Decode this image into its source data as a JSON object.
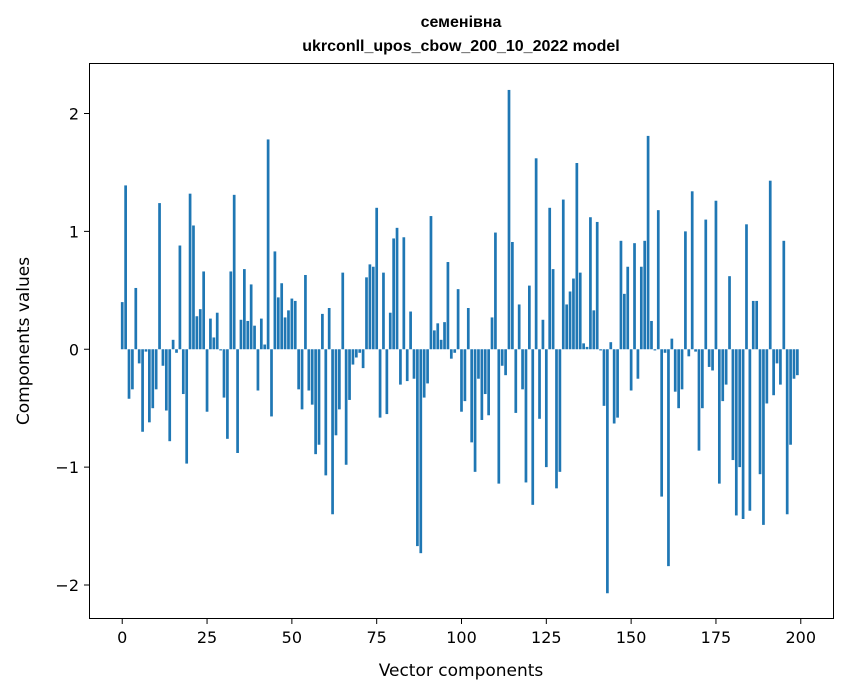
{
  "chart_data": {
    "type": "bar",
    "title": "семенівна",
    "subtitle": "ukrconll_upos_cbow_200_10_2022 model",
    "xlabel": "Vector components",
    "ylabel": "Components values",
    "xlim": [
      -9.5,
      209.5
    ],
    "ylim": [
      -2.28,
      2.42
    ],
    "xticks": [
      0,
      25,
      50,
      75,
      100,
      125,
      150,
      175,
      200
    ],
    "xtick_labels": [
      "0",
      "25",
      "50",
      "75",
      "100",
      "125",
      "150",
      "175",
      "200"
    ],
    "yticks": [
      -2,
      -1,
      0,
      1,
      2
    ],
    "ytick_labels": [
      "−2",
      "−1",
      "0",
      "1",
      "2"
    ],
    "grid": false,
    "bar_color": "#1f77b4",
    "x": [
      0,
      1,
      2,
      3,
      4,
      5,
      6,
      7,
      8,
      9,
      10,
      11,
      12,
      13,
      14,
      15,
      16,
      17,
      18,
      19,
      20,
      21,
      22,
      23,
      24,
      25,
      26,
      27,
      28,
      29,
      30,
      31,
      32,
      33,
      34,
      35,
      36,
      37,
      38,
      39,
      40,
      41,
      42,
      43,
      44,
      45,
      46,
      47,
      48,
      49,
      50,
      51,
      52,
      53,
      54,
      55,
      56,
      57,
      58,
      59,
      60,
      61,
      62,
      63,
      64,
      65,
      66,
      67,
      68,
      69,
      70,
      71,
      72,
      73,
      74,
      75,
      76,
      77,
      78,
      79,
      80,
      81,
      82,
      83,
      84,
      85,
      86,
      87,
      88,
      89,
      90,
      91,
      92,
      93,
      94,
      95,
      96,
      97,
      98,
      99,
      100,
      101,
      102,
      103,
      104,
      105,
      106,
      107,
      108,
      109,
      110,
      111,
      112,
      113,
      114,
      115,
      116,
      117,
      118,
      119,
      120,
      121,
      122,
      123,
      124,
      125,
      126,
      127,
      128,
      129,
      130,
      131,
      132,
      133,
      134,
      135,
      136,
      137,
      138,
      139,
      140,
      141,
      142,
      143,
      144,
      145,
      146,
      147,
      148,
      149,
      150,
      151,
      152,
      153,
      154,
      155,
      156,
      157,
      158,
      159,
      160,
      161,
      162,
      163,
      164,
      165,
      166,
      167,
      168,
      169,
      170,
      171,
      172,
      173,
      174,
      175,
      176,
      177,
      178,
      179,
      180,
      181,
      182,
      183,
      184,
      185,
      186,
      187,
      188,
      189,
      190,
      191,
      192,
      193,
      194,
      195,
      196,
      197,
      198,
      199
    ],
    "values": [
      0.4,
      1.39,
      -0.42,
      -0.34,
      0.52,
      -0.12,
      -0.7,
      -0.02,
      -0.62,
      -0.5,
      -0.34,
      1.24,
      -0.14,
      -0.52,
      -0.78,
      0.08,
      -0.03,
      0.88,
      -0.38,
      -0.97,
      1.32,
      1.05,
      0.28,
      0.34,
      0.66,
      -0.53,
      0.26,
      0.1,
      0.31,
      -0.01,
      -0.41,
      -0.76,
      0.66,
      1.31,
      -0.88,
      0.25,
      0.68,
      0.24,
      0.55,
      0.2,
      -0.35,
      0.26,
      0.04,
      1.78,
      -0.57,
      0.83,
      0.44,
      0.56,
      0.27,
      0.33,
      0.43,
      0.41,
      -0.34,
      -0.51,
      0.63,
      -0.35,
      -0.47,
      -0.89,
      -0.81,
      0.3,
      -1.07,
      0.35,
      -1.4,
      -0.73,
      -0.51,
      0.65,
      -0.98,
      -0.43,
      -0.13,
      -0.07,
      -0.03,
      -0.16,
      0.61,
      0.72,
      0.7,
      1.2,
      -0.58,
      0.65,
      -0.55,
      0.31,
      0.94,
      1.03,
      -0.3,
      0.95,
      -0.27,
      0.32,
      -0.25,
      -1.67,
      -1.73,
      -0.41,
      -0.29,
      1.13,
      0.16,
      0.22,
      0.08,
      0.23,
      0.74,
      -0.08,
      -0.03,
      0.51,
      -0.53,
      -0.44,
      0.35,
      -0.79,
      -1.04,
      -0.25,
      -0.6,
      -0.38,
      -0.56,
      0.27,
      0.99,
      -1.14,
      -0.14,
      -0.22,
      2.2,
      0.91,
      -0.54,
      0.38,
      -0.34,
      -1.13,
      0.54,
      -1.32,
      1.62,
      -0.59,
      0.25,
      -1.0,
      1.2,
      0.68,
      -1.18,
      -1.04,
      1.27,
      0.38,
      0.49,
      0.6,
      1.58,
      0.65,
      0.05,
      0.02,
      1.12,
      0.33,
      1.08,
      -0.01,
      -0.48,
      -2.07,
      0.06,
      -0.63,
      -0.58,
      0.92,
      0.47,
      0.7,
      -0.35,
      0.9,
      -0.25,
      0.7,
      0.92,
      1.81,
      0.24,
      -0.01,
      1.18,
      -1.25,
      -0.03,
      -1.84,
      0.09,
      -0.36,
      -0.5,
      -0.34,
      1.0,
      -0.06,
      1.34,
      -0.02,
      -0.86,
      -0.5,
      1.1,
      -0.15,
      -0.18,
      1.26,
      -1.14,
      -0.44,
      -0.3,
      0.62,
      -0.94,
      -1.41,
      -1.0,
      -1.44,
      1.06,
      -1.37,
      0.41,
      0.41,
      -1.06,
      -1.49,
      -0.46,
      1.43,
      -0.39,
      -0.12,
      -0.3,
      0.92,
      -1.4,
      -0.81,
      -0.25,
      -0.22
    ]
  }
}
